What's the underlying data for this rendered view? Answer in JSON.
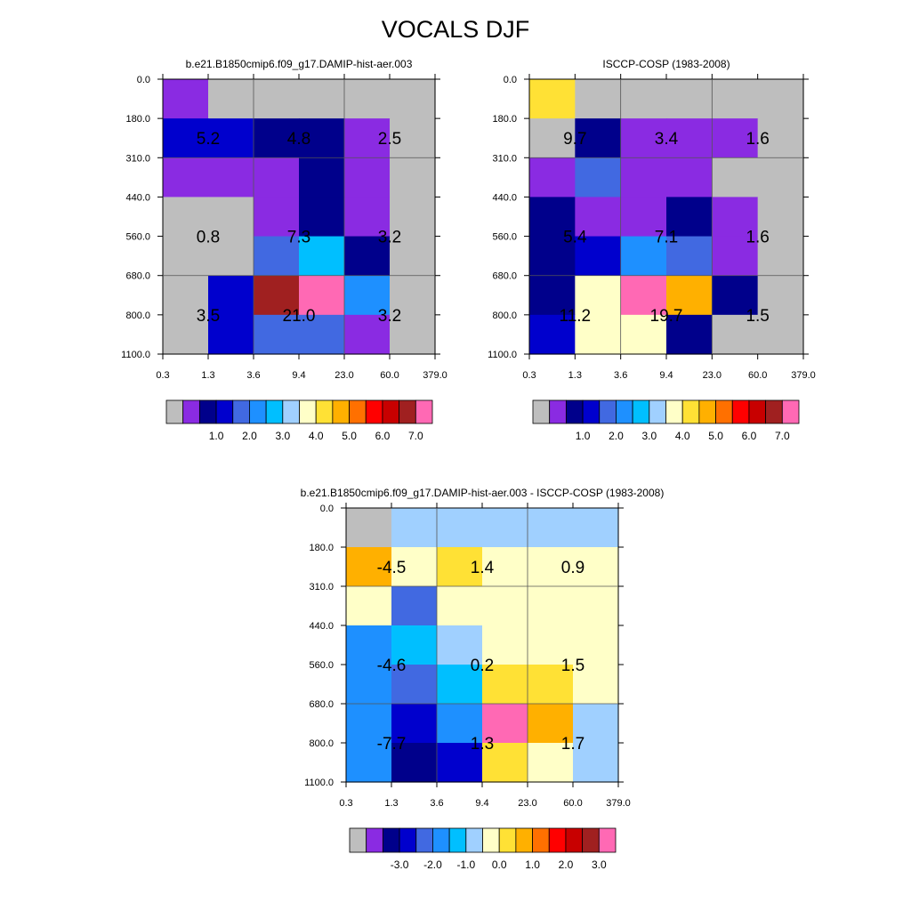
{
  "title": "VOCALS DJF",
  "x_tick_labels": [
    "0.3",
    "1.3",
    "3.6",
    "9.4",
    "23.0",
    "60.0",
    "379.0"
  ],
  "y_tick_labels": [
    "0.0",
    "180.0",
    "310.0",
    "440.0",
    "560.0",
    "680.0",
    "800.0",
    "1100.0"
  ],
  "palette": [
    "#bebebe",
    "#8a2be2",
    "#00008b",
    "#0000cd",
    "#4169e1",
    "#1e90ff",
    "#00bfff",
    "#a0d0ff",
    "#ffffc8",
    "#ffe135",
    "#ffb000",
    "#ff7000",
    "#ff0000",
    "#c80000",
    "#a02020",
    "#ff69b4"
  ],
  "chart_data": [
    {
      "type": "heatmap",
      "title": "b.e21.B1850cmip6.f09_g17.DAMIP-hist-aer.003",
      "grid": true,
      "cells": [
        [
          1,
          0,
          0,
          0,
          0,
          0
        ],
        [
          3,
          3,
          2,
          2,
          1,
          0
        ],
        [
          1,
          1,
          1,
          2,
          1,
          0
        ],
        [
          0,
          0,
          1,
          2,
          1,
          0
        ],
        [
          0,
          0,
          4,
          6,
          2,
          0
        ],
        [
          0,
          3,
          14,
          15,
          5,
          0
        ],
        [
          0,
          3,
          4,
          4,
          1,
          0
        ]
      ],
      "block_labels": [
        "5.2",
        "4.8",
        "2.5",
        "0.8",
        "7.3",
        "3.2",
        "3.5",
        "21.0",
        "3.2"
      ],
      "colorbar_labels": [
        "1.0",
        "2.0",
        "3.0",
        "4.0",
        "5.0",
        "6.0",
        "7.0"
      ]
    },
    {
      "type": "heatmap",
      "title": "ISCCP-COSP (1983-2008)",
      "grid": true,
      "cells": [
        [
          9,
          0,
          0,
          0,
          0,
          0
        ],
        [
          0,
          2,
          1,
          1,
          1,
          0
        ],
        [
          1,
          4,
          1,
          1,
          0,
          0
        ],
        [
          2,
          1,
          1,
          2,
          1,
          0
        ],
        [
          2,
          3,
          5,
          4,
          1,
          0
        ],
        [
          2,
          8,
          15,
          10,
          2,
          0
        ],
        [
          3,
          8,
          8,
          2,
          0,
          0
        ]
      ],
      "block_labels": [
        "9.7",
        "3.4",
        "1.6",
        "5.4",
        "7.1",
        "1.6",
        "11.2",
        "19.7",
        "1.5"
      ],
      "colorbar_labels": [
        "1.0",
        "2.0",
        "3.0",
        "4.0",
        "5.0",
        "6.0",
        "7.0"
      ]
    },
    {
      "type": "heatmap",
      "title": "b.e21.B1850cmip6.f09_g17.DAMIP-hist-aer.003 - ISCCP-COSP (1983-2008)",
      "grid": true,
      "cells": [
        [
          0,
          7,
          7,
          7,
          7,
          7
        ],
        [
          10,
          8,
          9,
          8,
          8,
          8
        ],
        [
          8,
          4,
          8,
          8,
          8,
          8
        ],
        [
          5,
          6,
          7,
          8,
          8,
          8
        ],
        [
          5,
          4,
          6,
          9,
          9,
          8
        ],
        [
          5,
          3,
          5,
          15,
          10,
          7
        ],
        [
          5,
          2,
          3,
          9,
          8,
          7
        ]
      ],
      "block_labels": [
        "-4.5",
        "1.4",
        "0.9",
        "-4.6",
        "0.2",
        "1.5",
        "-7.7",
        "1.3",
        "1.7"
      ],
      "colorbar_labels": [
        "-3.0",
        "-2.0",
        "-1.0",
        "0.0",
        "1.0",
        "2.0",
        "3.0"
      ]
    }
  ]
}
